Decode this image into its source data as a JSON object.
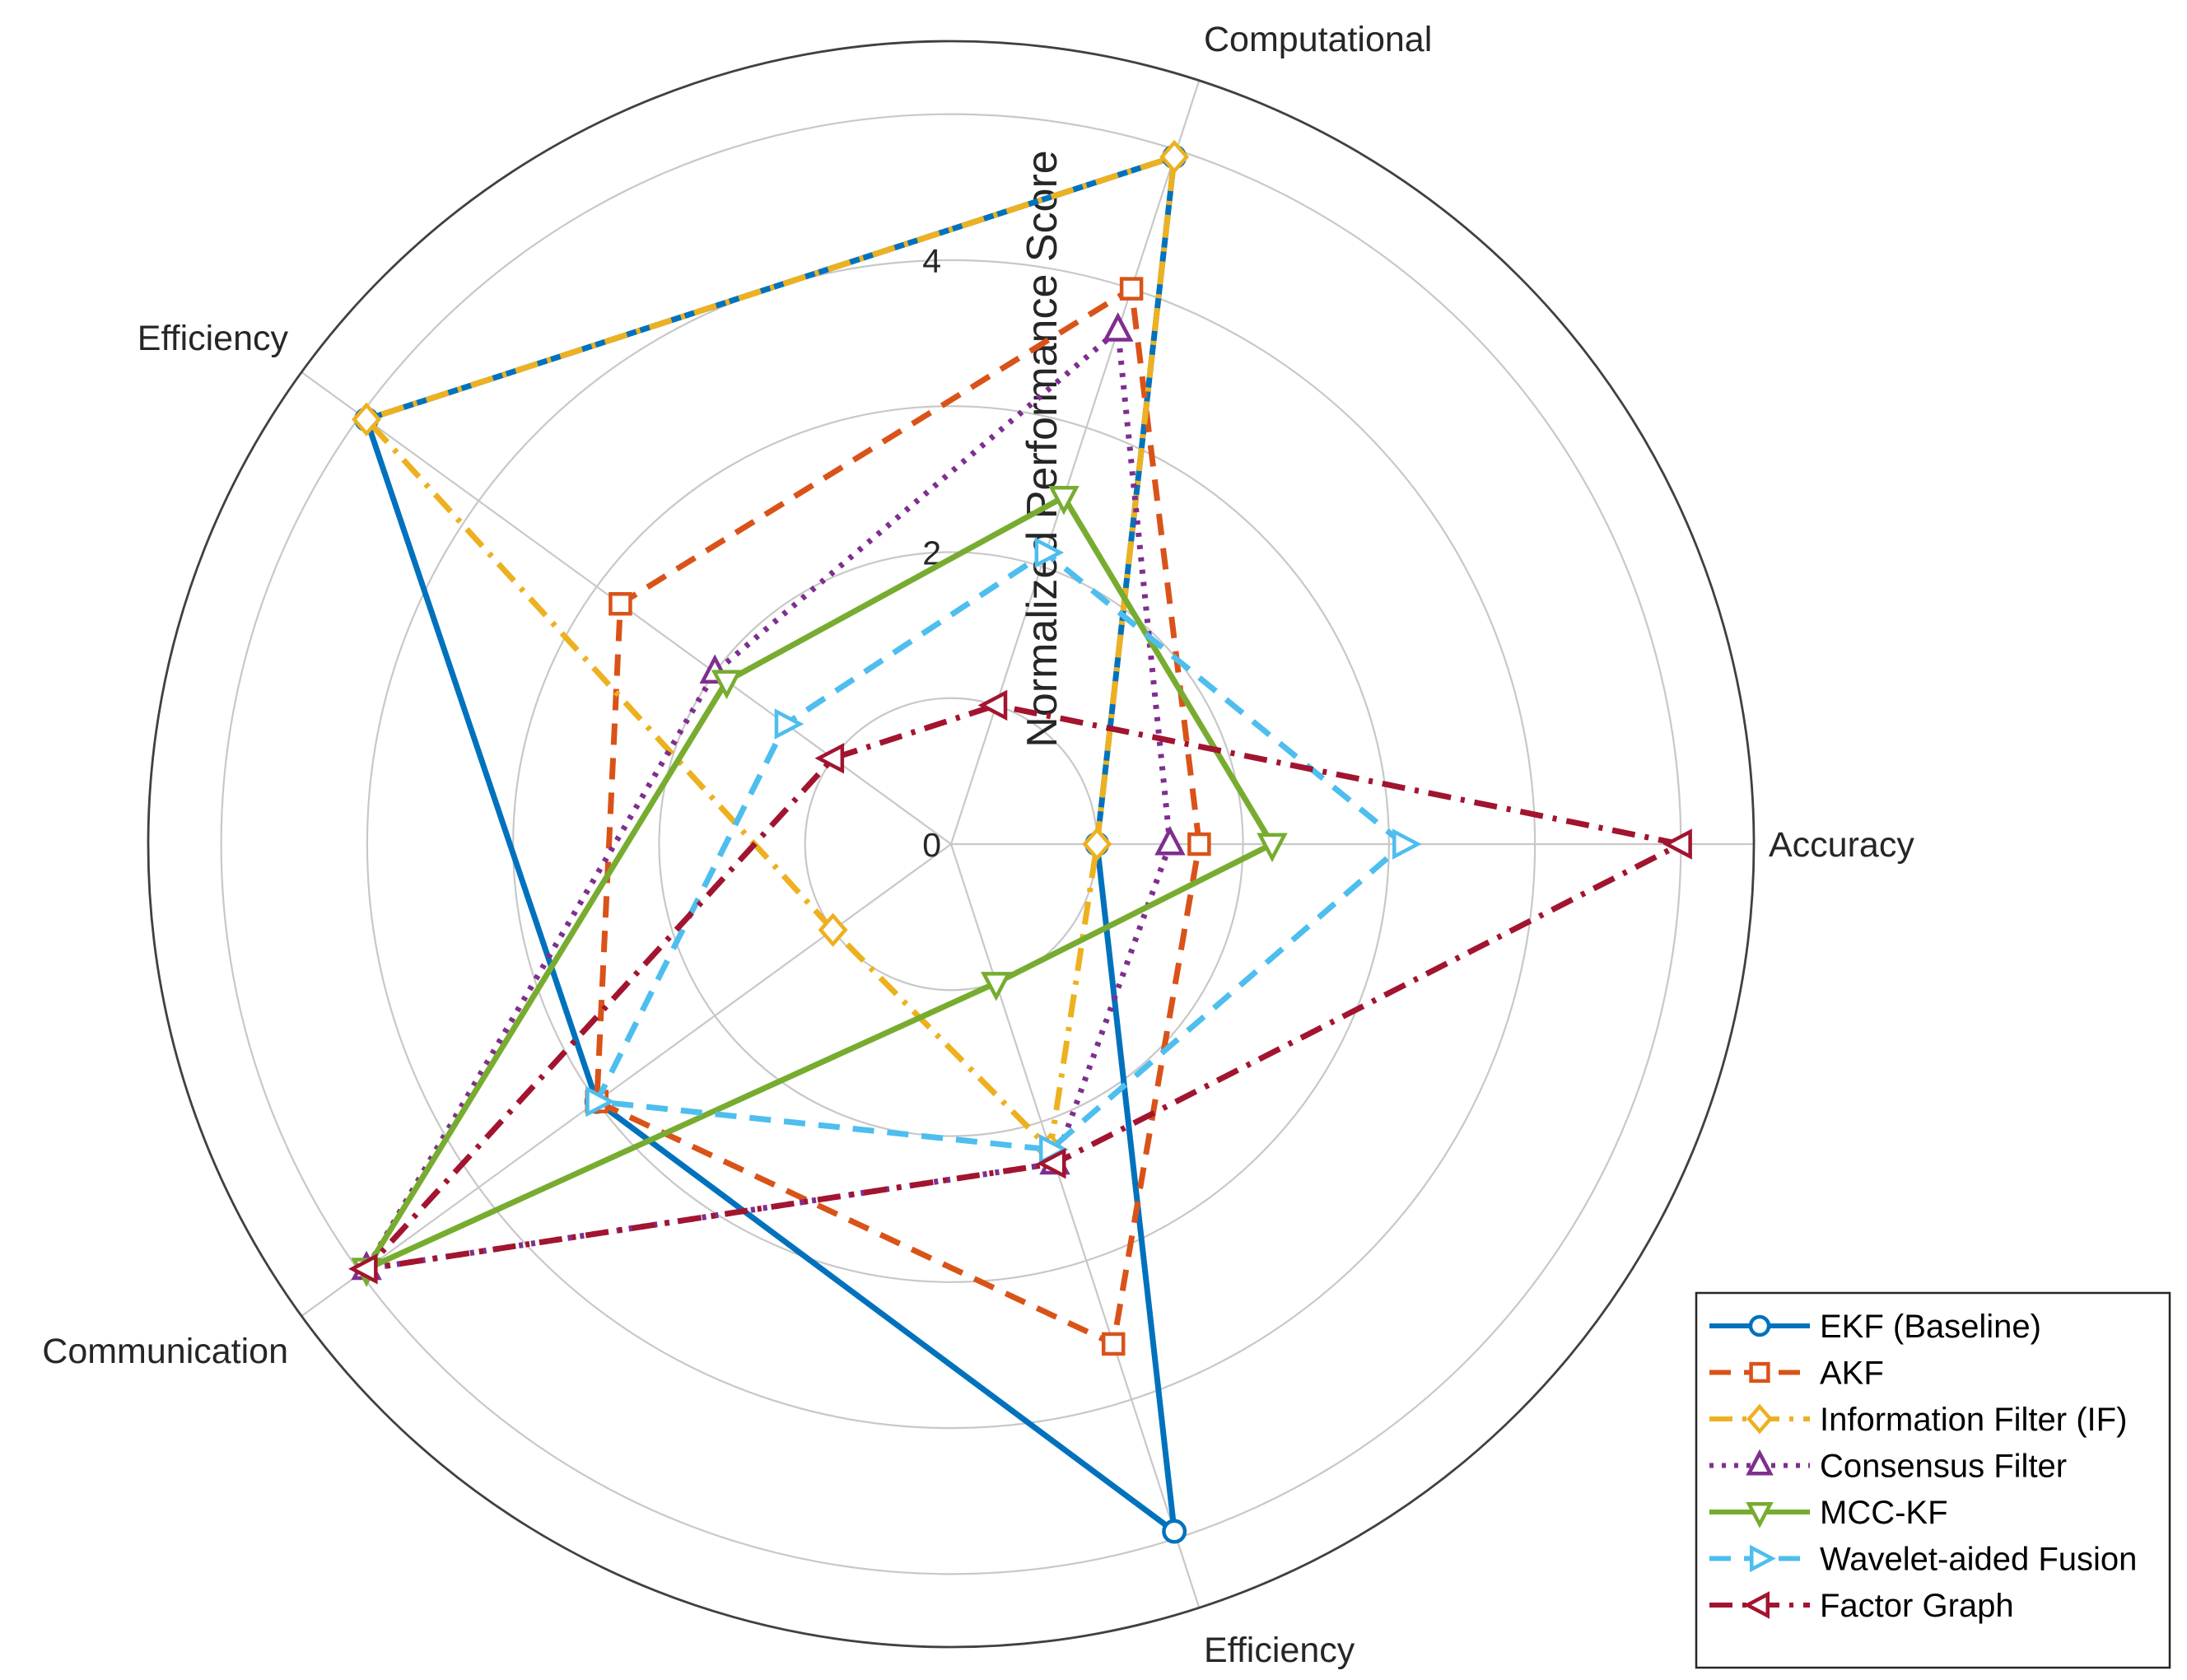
{
  "chart_data": {
    "type": "radar",
    "axes": [
      "Accuracy",
      "Computational",
      "Efficiency",
      "Communication",
      "Efficiency"
    ],
    "radial_axis": {
      "label": "Normalized Performance Score",
      "tick_labels": [
        "0",
        "2",
        "4"
      ],
      "grid_rings": [
        1,
        2,
        3,
        4,
        5
      ],
      "rmax": 5.5
    },
    "grid": true,
    "legend_position": "bottom-right",
    "series": [
      {
        "name": "EKF (Baseline)",
        "values": [
          1.0,
          4.95,
          4.95,
          3.0,
          4.95
        ],
        "color": "#0072BD",
        "dash": "solid",
        "marker": "circle"
      },
      {
        "name": "AKF",
        "values": [
          1.7,
          4.0,
          2.8,
          3.0,
          3.6
        ],
        "color": "#D95319",
        "dash": "dashed",
        "marker": "square"
      },
      {
        "name": "Information Filter (IF)",
        "values": [
          1.0,
          4.95,
          4.95,
          1.0,
          2.2
        ],
        "color": "#EDB120",
        "dash": "dashdot",
        "marker": "diamond"
      },
      {
        "name": "Consensus Filter",
        "values": [
          1.5,
          3.7,
          2.0,
          4.95,
          2.3
        ],
        "color": "#7E2F8E",
        "dash": "dotted",
        "marker": "triangle-up"
      },
      {
        "name": "MCC-KF",
        "values": [
          2.2,
          2.5,
          1.9,
          4.95,
          1.0
        ],
        "color": "#77AC30",
        "dash": "solid",
        "marker": "triangle-down"
      },
      {
        "name": "Wavelet-aided Fusion",
        "values": [
          3.1,
          2.1,
          1.4,
          3.0,
          2.2
        ],
        "color": "#4DBEEE",
        "dash": "dashed",
        "marker": "triangle-right"
      },
      {
        "name": "Factor Graph",
        "values": [
          5.0,
          1.0,
          1.0,
          4.95,
          2.3
        ],
        "color": "#A2142F",
        "dash": "dashdot",
        "marker": "triangle-left"
      }
    ]
  }
}
